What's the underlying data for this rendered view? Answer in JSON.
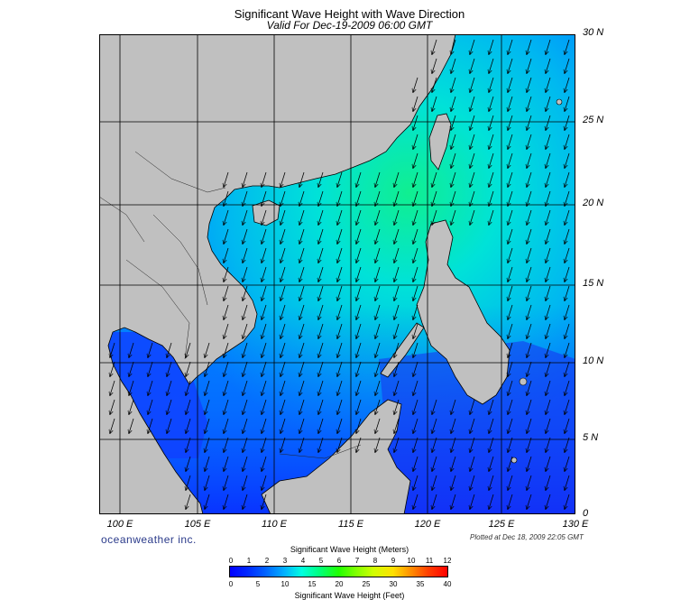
{
  "header": {
    "title": "Significant Wave Height with Wave Direction",
    "subtitle": "Valid For Dec-19-2009 06:00 GMT"
  },
  "map": {
    "latitude_labels": [
      "30 N",
      "25 N",
      "20 N",
      "15 N",
      "10 N",
      "5 N",
      "0"
    ],
    "longitude_labels": [
      "100 E",
      "105 E",
      "110 E",
      "115 E",
      "120 E",
      "125 E",
      "130 E"
    ],
    "lat_range": [
      0,
      30
    ],
    "lon_range": [
      99,
      130
    ],
    "grid_spacing_deg": 5,
    "land_color": "#c0c0c0",
    "coast_color": "#000000",
    "wave_direction": "northeast (arrows point toward the southwest)",
    "peak_wave_height_region": "Luzon Strait / northern South China Sea, about 3.5 m"
  },
  "footer": {
    "brand": "oceanweather inc.",
    "plotted": "Plotted at Dec 18, 2009 22:05 GMT"
  },
  "colorbar": {
    "title_meters": "Significant Wave Height (Meters)",
    "title_feet": "Significant Wave Height (Feet)",
    "meters_ticks": [
      "0",
      "1",
      "2",
      "3",
      "4",
      "5",
      "6",
      "7",
      "8",
      "9",
      "10",
      "11",
      "12"
    ],
    "feet_ticks": [
      "0",
      "5",
      "10",
      "15",
      "20",
      "25",
      "30",
      "35",
      "40"
    ]
  }
}
